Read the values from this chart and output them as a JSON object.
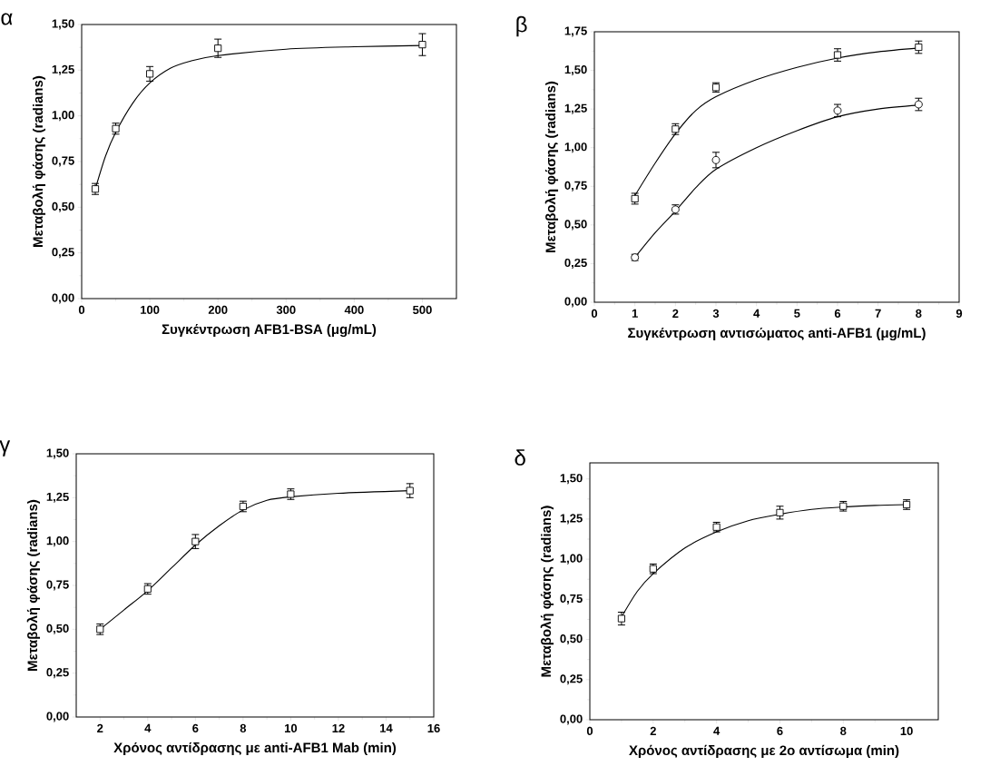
{
  "chart_data": [
    {
      "type": "scatter",
      "title": "α",
      "xlabel": "Συγκέντρωση AFB1-BSA (μg/mL)",
      "ylabel": "Μεταβολή φάσης (radians)",
      "xlim": [
        0,
        550
      ],
      "xticks": [
        0,
        100,
        200,
        300,
        400,
        500
      ],
      "ylim": [
        0,
        1.5
      ],
      "yticks": [
        {
          "value": 0,
          "label": "0,00"
        },
        {
          "value": 0.25,
          "label": "0,25"
        },
        {
          "value": 0.5,
          "label": "0,50"
        },
        {
          "value": 0.75,
          "label": "0,75"
        },
        {
          "value": 1,
          "label": "1,00"
        },
        {
          "value": 1.25,
          "label": "1,25"
        },
        {
          "value": 1.5,
          "label": "1,50"
        }
      ],
      "series": [
        {
          "marker": "square",
          "color": "#000000",
          "x": [
            20,
            50,
            100,
            200,
            500
          ],
          "values": [
            0.6,
            0.93,
            1.23,
            1.37,
            1.39
          ],
          "errors": [
            0.03,
            0.03,
            0.04,
            0.05,
            0.06
          ]
        },
        {
          "type": "line",
          "marker": "none",
          "color": "#000000",
          "x": [
            20,
            35,
            50,
            75,
            100,
            130,
            160,
            200,
            300,
            400,
            500
          ],
          "values": [
            0.6,
            0.78,
            0.91,
            1.07,
            1.18,
            1.26,
            1.3,
            1.33,
            1.365,
            1.378,
            1.385
          ]
        }
      ]
    },
    {
      "type": "scatter",
      "title": "β",
      "xlabel": "Συγκέντρωση αντισώματος anti-AFB1 (μg/mL)",
      "ylabel": "Μεταβολή φάσης (radians)",
      "xlim": [
        0,
        9
      ],
      "xticks": [
        0,
        1,
        2,
        3,
        4,
        5,
        6,
        7,
        8,
        9
      ],
      "ylim": [
        0,
        1.75
      ],
      "yticks": [
        {
          "value": 0,
          "label": "0,00"
        },
        {
          "value": 0.25,
          "label": "0,25"
        },
        {
          "value": 0.5,
          "label": "0,50"
        },
        {
          "value": 0.75,
          "label": "0,75"
        },
        {
          "value": 1,
          "label": "1,00"
        },
        {
          "value": 1.25,
          "label": "1,25"
        },
        {
          "value": 1.5,
          "label": "1,50"
        },
        {
          "value": 1.75,
          "label": "1,75"
        }
      ],
      "series": [
        {
          "marker": "square",
          "color": "#000000",
          "x": [
            1,
            2,
            3,
            6,
            8
          ],
          "values": [
            0.67,
            1.12,
            1.39,
            1.6,
            1.65
          ],
          "errors": [
            0.035,
            0.035,
            0.03,
            0.04,
            0.04
          ]
        },
        {
          "type": "line",
          "marker": "none",
          "color": "#000000",
          "x": [
            1,
            1.5,
            2,
            2.5,
            3,
            4,
            5,
            6,
            7,
            8
          ],
          "values": [
            0.69,
            0.9,
            1.09,
            1.24,
            1.33,
            1.44,
            1.52,
            1.58,
            1.62,
            1.645
          ]
        },
        {
          "marker": "circle",
          "color": "#000000",
          "x": [
            1,
            2,
            3,
            6,
            8
          ],
          "values": [
            0.29,
            0.6,
            0.92,
            1.24,
            1.28
          ],
          "errors": [
            0.02,
            0.03,
            0.05,
            0.04,
            0.04
          ]
        },
        {
          "type": "line",
          "marker": "none",
          "color": "#000000",
          "x": [
            1,
            1.5,
            2,
            2.5,
            3,
            4,
            5,
            6,
            7,
            8
          ],
          "values": [
            0.29,
            0.45,
            0.59,
            0.74,
            0.86,
            1.0,
            1.11,
            1.2,
            1.25,
            1.275
          ]
        }
      ]
    },
    {
      "type": "scatter",
      "title": "γ",
      "xlabel": "Χρόνος αντίδρασης με anti-AFB1 Mab (min)",
      "ylabel": "Μεταβολή φάσης (radians)",
      "xlim": [
        1,
        16
      ],
      "xticks": [
        2,
        4,
        6,
        8,
        10,
        12,
        14,
        16
      ],
      "ylim": [
        0,
        1.5
      ],
      "yticks": [
        {
          "value": 0,
          "label": "0,00"
        },
        {
          "value": 0.25,
          "label": "0,25"
        },
        {
          "value": 0.5,
          "label": "0,50"
        },
        {
          "value": 0.75,
          "label": "0,75"
        },
        {
          "value": 1,
          "label": "1,00"
        },
        {
          "value": 1.25,
          "label": "1,25"
        },
        {
          "value": 1.5,
          "label": "1,50"
        }
      ],
      "series": [
        {
          "marker": "square",
          "color": "#000000",
          "x": [
            2,
            4,
            6,
            8,
            10,
            15
          ],
          "values": [
            0.5,
            0.73,
            1.0,
            1.2,
            1.27,
            1.29
          ],
          "errors": [
            0.03,
            0.03,
            0.04,
            0.03,
            0.03,
            0.04
          ]
        },
        {
          "type": "line",
          "marker": "none",
          "color": "#000000",
          "x": [
            2,
            3,
            4,
            5,
            6,
            7,
            8,
            9,
            10,
            12,
            15
          ],
          "values": [
            0.5,
            0.61,
            0.72,
            0.85,
            0.98,
            1.09,
            1.18,
            1.235,
            1.255,
            1.275,
            1.29
          ]
        }
      ]
    },
    {
      "type": "scatter",
      "title": "δ",
      "xlabel": "Χρόνος αντίδρασης με 2ο αντίσωμα (min)",
      "ylabel": "Μεταβολή φάσης (radians)",
      "xlim": [
        0,
        11
      ],
      "xticks": [
        0,
        2,
        4,
        6,
        8,
        10
      ],
      "ylim": [
        0,
        1.6
      ],
      "yticks": [
        {
          "value": 0,
          "label": "0,00"
        },
        {
          "value": 0.25,
          "label": "0,25"
        },
        {
          "value": 0.5,
          "label": "0,50"
        },
        {
          "value": 0.75,
          "label": "0,75"
        },
        {
          "value": 1,
          "label": "1,00"
        },
        {
          "value": 1.25,
          "label": "1,25"
        },
        {
          "value": 1.5,
          "label": "1,50"
        }
      ],
      "series": [
        {
          "marker": "square",
          "color": "#000000",
          "x": [
            1,
            2,
            4,
            6,
            8,
            10
          ],
          "values": [
            0.63,
            0.94,
            1.2,
            1.29,
            1.33,
            1.34
          ],
          "errors": [
            0.04,
            0.03,
            0.03,
            0.04,
            0.03,
            0.03
          ]
        },
        {
          "type": "line",
          "marker": "none",
          "color": "#000000",
          "x": [
            1,
            1.5,
            2,
            3,
            4,
            5,
            6,
            7,
            8,
            9,
            10
          ],
          "values": [
            0.64,
            0.8,
            0.91,
            1.07,
            1.17,
            1.24,
            1.28,
            1.31,
            1.325,
            1.335,
            1.34
          ]
        }
      ]
    }
  ]
}
